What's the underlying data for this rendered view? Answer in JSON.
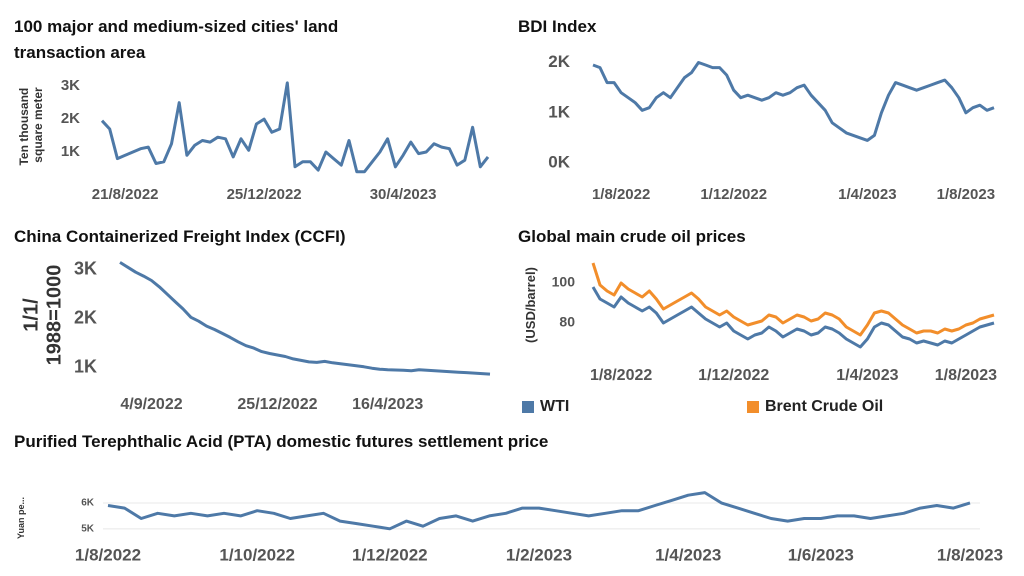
{
  "chart_data": [
    {
      "type": "line",
      "title": "100 major and medium-sized cities' land transaction area",
      "ylabel": "Ten thousand square meter",
      "color": "#4e79a7",
      "grid": false,
      "categories": [
        null,
        null,
        null,
        "21/8/2022",
        null,
        null,
        null,
        null,
        null,
        null,
        null,
        null,
        null,
        null,
        null,
        null,
        null,
        null,
        null,
        null,
        null,
        "25/12/2022",
        null,
        null,
        null,
        null,
        null,
        null,
        null,
        null,
        null,
        null,
        null,
        null,
        null,
        null,
        null,
        null,
        null,
        "30/4/2023",
        null,
        null,
        null,
        null,
        null,
        null,
        null,
        null,
        null,
        null,
        null
      ],
      "values": [
        1950,
        1700,
        800,
        900,
        1000,
        1100,
        1150,
        650,
        700,
        1250,
        2500,
        900,
        1200,
        1350,
        1300,
        1450,
        1400,
        850,
        1400,
        1050,
        1850,
        2000,
        1600,
        1700,
        3100,
        550,
        700,
        700,
        450,
        1000,
        800,
        600,
        1350,
        400,
        400,
        700,
        1000,
        1400,
        550,
        900,
        1300,
        950,
        1000,
        1250,
        1150,
        1100,
        600,
        750,
        1750,
        550,
        850
      ],
      "ylim": [
        300,
        3250
      ],
      "yticks": [
        {
          "value": 1000,
          "label": "1K"
        },
        {
          "value": 2000,
          "label": "2K"
        },
        {
          "value": 3000,
          "label": "3K"
        }
      ]
    },
    {
      "type": "line",
      "title": "BDI Index",
      "color": "#4e79a7",
      "grid": false,
      "categories": [
        null,
        null,
        null,
        null,
        "1/8/2022",
        null,
        null,
        null,
        null,
        null,
        null,
        null,
        null,
        null,
        null,
        null,
        null,
        null,
        null,
        null,
        "1/12/2022",
        null,
        null,
        null,
        null,
        null,
        null,
        null,
        null,
        null,
        null,
        null,
        null,
        null,
        null,
        null,
        null,
        null,
        null,
        "1/4/2023",
        null,
        null,
        null,
        null,
        null,
        null,
        null,
        null,
        null,
        null,
        null,
        null,
        null,
        "1/8/2023",
        null,
        null,
        null,
        null
      ],
      "values": [
        1950,
        1900,
        1600,
        1600,
        1400,
        1300,
        1200,
        1050,
        1100,
        1300,
        1400,
        1300,
        1500,
        1700,
        1800,
        2000,
        1950,
        1900,
        1900,
        1750,
        1450,
        1300,
        1350,
        1300,
        1250,
        1300,
        1400,
        1350,
        1400,
        1500,
        1550,
        1350,
        1200,
        1050,
        800,
        700,
        600,
        550,
        500,
        450,
        550,
        1000,
        1350,
        1600,
        1550,
        1500,
        1450,
        1500,
        1550,
        1600,
        1650,
        1500,
        1300,
        1000,
        1100,
        1150,
        1050,
        1100
      ],
      "ylim": [
        0,
        2150
      ],
      "yticks": [
        {
          "value": 0,
          "label": "0K"
        },
        {
          "value": 1000,
          "label": "1K"
        },
        {
          "value": 2000,
          "label": "2K"
        }
      ]
    },
    {
      "type": "line",
      "title": "China Containerized Freight Index (CCFI)",
      "ylabel": "1/1/1988=1000",
      "color": "#4e79a7",
      "grid": false,
      "categories": [
        null,
        null,
        null,
        null,
        "4/9/2022",
        null,
        null,
        null,
        null,
        null,
        null,
        null,
        null,
        null,
        null,
        null,
        null,
        null,
        null,
        null,
        "25/12/2022",
        null,
        null,
        null,
        null,
        null,
        null,
        null,
        null,
        null,
        null,
        null,
        null,
        null,
        "16/4/2023",
        null,
        null,
        null,
        null,
        null,
        null,
        null,
        null,
        null,
        null,
        null,
        null,
        null
      ],
      "values": [
        3150,
        3050,
        2950,
        2870,
        2780,
        2650,
        2500,
        2350,
        2200,
        2030,
        1950,
        1850,
        1780,
        1700,
        1620,
        1530,
        1450,
        1400,
        1330,
        1290,
        1260,
        1230,
        1180,
        1150,
        1120,
        1110,
        1130,
        1100,
        1080,
        1060,
        1040,
        1020,
        990,
        970,
        960,
        955,
        950,
        940,
        960,
        950,
        940,
        930,
        920,
        910,
        900,
        890,
        880,
        870
      ],
      "ylim": [
        750,
        3300
      ],
      "yticks": [
        {
          "value": 1000,
          "label": "1K"
        },
        {
          "value": 2000,
          "label": "2K"
        },
        {
          "value": 3000,
          "label": "3K"
        }
      ]
    },
    {
      "type": "line",
      "title": "Global main crude oil prices",
      "ylabel": "(USD/barrel)",
      "grid": false,
      "legend": "bottom",
      "categories": [
        null,
        null,
        null,
        null,
        "1/8/2022",
        null,
        null,
        null,
        null,
        null,
        null,
        null,
        null,
        null,
        null,
        null,
        null,
        null,
        null,
        null,
        "1/12/2022",
        null,
        null,
        null,
        null,
        null,
        null,
        null,
        null,
        null,
        null,
        null,
        null,
        null,
        null,
        null,
        null,
        null,
        null,
        "1/4/2023",
        null,
        null,
        null,
        null,
        null,
        null,
        null,
        null,
        null,
        null,
        null,
        null,
        null,
        "1/8/2023",
        null,
        null,
        null,
        null
      ],
      "series": [
        {
          "name": "WTI",
          "color": "#4e79a7",
          "values": [
            98,
            92,
            90,
            88,
            93,
            90,
            88,
            86,
            88,
            85,
            80,
            82,
            84,
            86,
            88,
            85,
            82,
            80,
            78,
            80,
            76,
            74,
            72,
            74,
            75,
            78,
            76,
            73,
            75,
            77,
            76,
            74,
            75,
            78,
            77,
            75,
            72,
            70,
            68,
            72,
            78,
            80,
            79,
            76,
            73,
            72,
            70,
            71,
            70,
            69,
            71,
            70,
            72,
            74,
            76,
            78,
            79,
            80
          ]
        },
        {
          "name": "Brent Crude Oil",
          "color": "#f28e2b",
          "values": [
            110,
            99,
            96,
            94,
            100,
            97,
            95,
            93,
            96,
            92,
            87,
            89,
            91,
            93,
            95,
            92,
            88,
            86,
            84,
            86,
            83,
            81,
            79,
            80,
            81,
            84,
            83,
            80,
            82,
            84,
            83,
            81,
            82,
            85,
            84,
            82,
            78,
            76,
            74,
            79,
            85,
            86,
            85,
            82,
            79,
            77,
            75,
            76,
            76,
            75,
            77,
            76,
            77,
            79,
            80,
            82,
            83,
            84
          ]
        }
      ],
      "ylim": [
        65,
        112
      ],
      "yticks": [
        80,
        100
      ]
    },
    {
      "type": "line",
      "title": "Purified Terephthalic Acid (PTA) domestic futures settlement price",
      "ylabel": "Yuan pe...",
      "color": "#4e79a7",
      "grid": true,
      "categories": [
        "1/8/2022",
        null,
        null,
        null,
        null,
        null,
        null,
        null,
        null,
        "1/10/2022",
        null,
        null,
        null,
        null,
        null,
        null,
        null,
        "1/12/2022",
        null,
        null,
        null,
        null,
        null,
        null,
        null,
        null,
        "1/2/2023",
        null,
        null,
        null,
        null,
        null,
        null,
        null,
        null,
        "1/4/2023",
        null,
        null,
        null,
        null,
        null,
        null,
        null,
        "1/6/2023",
        null,
        null,
        null,
        null,
        null,
        null,
        null,
        null,
        "1/8/2023"
      ],
      "values": [
        5900,
        5800,
        5400,
        5600,
        5500,
        5600,
        5500,
        5600,
        5500,
        5700,
        5600,
        5400,
        5500,
        5600,
        5300,
        5200,
        5100,
        5000,
        5300,
        5100,
        5400,
        5500,
        5300,
        5500,
        5600,
        5800,
        5800,
        5700,
        5600,
        5500,
        5600,
        5700,
        5700,
        5900,
        6100,
        6300,
        6400,
        6000,
        5800,
        5600,
        5400,
        5300,
        5400,
        5400,
        5500,
        5500,
        5400,
        5500,
        5600,
        5800,
        5900,
        5800,
        6000
      ],
      "ylim": [
        4800,
        6500
      ],
      "yticks": [
        {
          "value": 5000,
          "label": "5K"
        },
        {
          "value": 6000,
          "label": "6K"
        }
      ]
    }
  ]
}
